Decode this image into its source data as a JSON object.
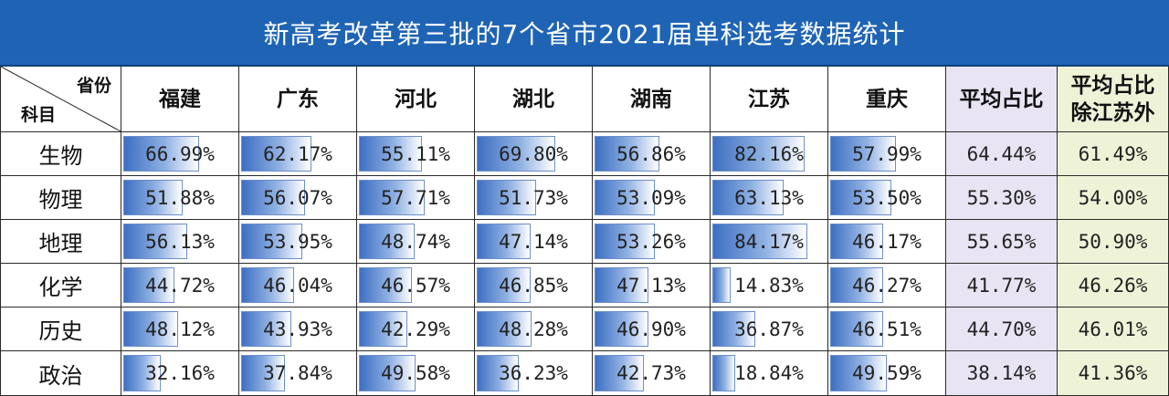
{
  "title": "新高考改革第三批的7个省市2021届单科选考数据统计",
  "corner": {
    "top_label": "省份",
    "bottom_label": "科目"
  },
  "columns": [
    "福建",
    "广东",
    "河北",
    "湖北",
    "湖南",
    "江苏",
    "重庆",
    "平均占比",
    "平均占比\n除江苏外"
  ],
  "chart_data": {
    "type": "table",
    "title": "新高考改革第三批的7个省市2021届单科选考数据统计",
    "provinces": [
      "福建",
      "广东",
      "河北",
      "湖北",
      "湖南",
      "江苏",
      "重庆"
    ],
    "subjects": [
      "生物",
      "物理",
      "地理",
      "化学",
      "历史",
      "政治"
    ],
    "values": [
      [
        "66.99%",
        "62.17%",
        "55.11%",
        "69.80%",
        "56.86%",
        "82.16%",
        "57.99%"
      ],
      [
        "51.88%",
        "56.07%",
        "57.71%",
        "51.73%",
        "53.09%",
        "63.13%",
        "53.50%"
      ],
      [
        "56.13%",
        "53.95%",
        "48.74%",
        "47.14%",
        "53.26%",
        "84.17%",
        "46.17%"
      ],
      [
        "44.72%",
        "46.04%",
        "46.57%",
        "46.85%",
        "47.13%",
        "14.83%",
        "46.27%"
      ],
      [
        "48.12%",
        "43.93%",
        "42.29%",
        "48.28%",
        "46.90%",
        "36.87%",
        "46.51%"
      ],
      [
        "32.16%",
        "37.84%",
        "49.58%",
        "36.23%",
        "42.73%",
        "18.84%",
        "49.59%"
      ]
    ],
    "average": [
      "64.44%",
      "55.30%",
      "55.65%",
      "41.77%",
      "44.70%",
      "38.14%"
    ],
    "average_excluding_jiangsu": [
      "61.49%",
      "54.00%",
      "50.90%",
      "46.26%",
      "46.01%",
      "41.36%"
    ],
    "bar_scale_max": 100,
    "colors": {
      "header_bg": "#1f64b4",
      "bar": "#3d6fc2",
      "avg_bg": "#e8e4f3",
      "avg2_bg": "#eef3d8"
    }
  }
}
